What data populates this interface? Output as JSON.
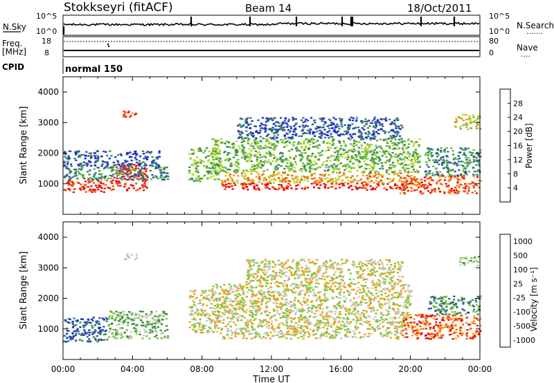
{
  "header": {
    "station": "Stokkseyri (fitACF)",
    "beam": "Beam 14",
    "date": "18/Oct/2011"
  },
  "sky_panel": {
    "left_label": "N.Sky",
    "right_label": "N.Search",
    "left_ticks": [
      "10^5",
      "10^0"
    ],
    "right_ticks": [
      "10^5",
      "10^0"
    ],
    "right_legend": "·······"
  },
  "freq_panel": {
    "left_label_1": "Freq.",
    "left_label_2": "[MHz]",
    "left_ticks": [
      "18",
      "8"
    ],
    "right_ticks": [
      "80",
      "0"
    ],
    "right_label": "Nave",
    "right_legend": "····"
  },
  "cpid_panel": {
    "label": "CPID",
    "value": "normal 150"
  },
  "chart_data": [
    {
      "type": "heatmap",
      "panel": "power",
      "ylabel": "Slant Range [km]",
      "xlabel": "Time UT",
      "x_ticks": [
        "00:00",
        "04:00",
        "08:00",
        "12:00",
        "16:00",
        "20:00",
        "00:00"
      ],
      "y_ticks": [
        "1000",
        "2000",
        "3000",
        "4000"
      ],
      "ylim": [
        0,
        4500
      ],
      "xlim_hours": [
        0,
        24
      ],
      "colorbar": {
        "label": "Power [dB]",
        "ticks": [
          "4",
          "8",
          "12",
          "16",
          "20",
          "24",
          "28"
        ],
        "colors": [
          "#1e24e0",
          "#2e4ea6",
          "#3c8a5a",
          "#62b83c",
          "#b8d82c",
          "#f0a018",
          "#f05a14",
          "#e80e0e"
        ]
      },
      "regions": [
        {
          "t0": 0.0,
          "t1": 2.8,
          "r0": 750,
          "r1": 1150,
          "level": 7
        },
        {
          "t0": 2.8,
          "t1": 4.8,
          "r0": 800,
          "r1": 1650,
          "level": 7
        },
        {
          "t0": 0.0,
          "t1": 6.0,
          "r0": 1150,
          "r1": 1600,
          "level": 2
        },
        {
          "t0": 0.0,
          "t1": 5.5,
          "r0": 1600,
          "r1": 2100,
          "level": 1
        },
        {
          "t0": 3.4,
          "t1": 4.2,
          "r0": 3200,
          "r1": 3450,
          "level": 6
        },
        {
          "t0": 7.2,
          "t1": 9.0,
          "r0": 1100,
          "r1": 2200,
          "level": 3
        },
        {
          "t0": 9.0,
          "t1": 19.8,
          "r0": 820,
          "r1": 1050,
          "level": 7
        },
        {
          "t0": 9.0,
          "t1": 19.8,
          "r0": 1050,
          "r1": 1400,
          "level": 5
        },
        {
          "t0": 8.5,
          "t1": 20.5,
          "r0": 1400,
          "r1": 2500,
          "level": 3
        },
        {
          "t0": 10.0,
          "t1": 19.5,
          "r0": 2500,
          "r1": 3200,
          "level": 1
        },
        {
          "t0": 19.3,
          "t1": 24.0,
          "r0": 700,
          "r1": 1300,
          "level": 6
        },
        {
          "t0": 20.8,
          "t1": 24.0,
          "r0": 1300,
          "r1": 2200,
          "level": 2
        },
        {
          "t0": 22.5,
          "t1": 24.0,
          "r0": 2800,
          "r1": 3300,
          "level": 4
        }
      ]
    },
    {
      "type": "heatmap",
      "panel": "velocity",
      "ylabel": "Slant Range [km]",
      "xlabel": "Time UT",
      "x_ticks": [
        "00:00",
        "04:00",
        "08:00",
        "12:00",
        "16:00",
        "20:00",
        "00:00"
      ],
      "y_ticks": [
        "1000",
        "2000",
        "3000",
        "4000"
      ],
      "ylim": [
        0,
        4500
      ],
      "xlim_hours": [
        0,
        24
      ],
      "colorbar": {
        "label": "Velocity [m s⁻¹]",
        "ticks": [
          "1000",
          "500",
          "100",
          "25",
          "-25",
          "-100",
          "-500",
          "-1000"
        ],
        "colors": [
          "#1c2ad8",
          "#2e5a9e",
          "#3a8a4a",
          "#7cc83c",
          "#c8c8c0",
          "#f0a018",
          "#f06a10",
          "#e81010"
        ]
      },
      "regions": [
        {
          "t0": 0.0,
          "t1": 2.5,
          "r0": 600,
          "r1": 1400,
          "level": 1
        },
        {
          "t0": 2.5,
          "t1": 6.0,
          "r0": 700,
          "r1": 1600,
          "level": 3
        },
        {
          "t0": 3.4,
          "t1": 4.2,
          "r0": 3300,
          "r1": 3500,
          "level": 3
        },
        {
          "t0": 7.2,
          "t1": 9.0,
          "r0": 900,
          "r1": 2300,
          "level": 4
        },
        {
          "t0": 9.0,
          "t1": 19.5,
          "r0": 700,
          "r1": 1200,
          "level": 4
        },
        {
          "t0": 8.5,
          "t1": 20.0,
          "r0": 1200,
          "r1": 2500,
          "level": 4
        },
        {
          "t0": 10.5,
          "t1": 19.5,
          "r0": 2500,
          "r1": 3300,
          "level": 4
        },
        {
          "t0": 19.5,
          "t1": 24.0,
          "r0": 700,
          "r1": 1500,
          "level": 6
        },
        {
          "t0": 21.0,
          "t1": 24.0,
          "r0": 1500,
          "r1": 2100,
          "level": 2
        },
        {
          "t0": 22.8,
          "t1": 24.0,
          "r0": 3100,
          "r1": 3400,
          "level": 3
        }
      ]
    }
  ]
}
